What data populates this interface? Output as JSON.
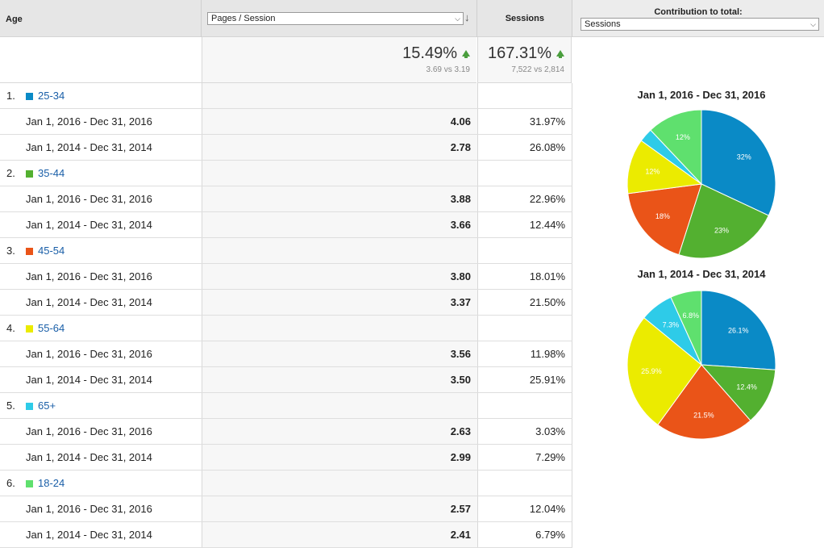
{
  "header": {
    "age_label": "Age",
    "metric_select": "Pages / Session",
    "sessions_label": "Sessions",
    "contribution_label": "Contribution to total:",
    "contribution_select": "Sessions"
  },
  "summary": {
    "pps_change": "15.49%",
    "pps_detail": "3.69 vs 3.19",
    "sessions_change": "167.31%",
    "sessions_detail": "7,522 vs 2,814"
  },
  "colors": [
    "#0a8ac6",
    "#53b030",
    "#ea5418",
    "#ebeb00",
    "#2ecbe8",
    "#5fe06e"
  ],
  "rows": [
    {
      "rank": "1.",
      "label": "25-34",
      "color": "#0a8ac6",
      "a_range": "Jan 1, 2016 - Dec 31, 2016",
      "a_pps": "4.06",
      "a_sess": "31.97%",
      "b_range": "Jan 1, 2014 - Dec 31, 2014",
      "b_pps": "2.78",
      "b_sess": "26.08%"
    },
    {
      "rank": "2.",
      "label": "35-44",
      "color": "#53b030",
      "a_range": "Jan 1, 2016 - Dec 31, 2016",
      "a_pps": "3.88",
      "a_sess": "22.96%",
      "b_range": "Jan 1, 2014 - Dec 31, 2014",
      "b_pps": "3.66",
      "b_sess": "12.44%"
    },
    {
      "rank": "3.",
      "label": "45-54",
      "color": "#ea5418",
      "a_range": "Jan 1, 2016 - Dec 31, 2016",
      "a_pps": "3.80",
      "a_sess": "18.01%",
      "b_range": "Jan 1, 2014 - Dec 31, 2014",
      "b_pps": "3.37",
      "b_sess": "21.50%"
    },
    {
      "rank": "4.",
      "label": "55-64",
      "color": "#ebeb00",
      "a_range": "Jan 1, 2016 - Dec 31, 2016",
      "a_pps": "3.56",
      "a_sess": "11.98%",
      "b_range": "Jan 1, 2014 - Dec 31, 2014",
      "b_pps": "3.50",
      "b_sess": "25.91%"
    },
    {
      "rank": "5.",
      "label": "65+",
      "color": "#2ecbe8",
      "a_range": "Jan 1, 2016 - Dec 31, 2016",
      "a_pps": "2.63",
      "a_sess": "3.03%",
      "b_range": "Jan 1, 2014 - Dec 31, 2014",
      "b_pps": "2.99",
      "b_sess": "7.29%"
    },
    {
      "rank": "6.",
      "label": "18-24",
      "color": "#5fe06e",
      "a_range": "Jan 1, 2016 - Dec 31, 2016",
      "a_pps": "2.57",
      "a_sess": "12.04%",
      "b_range": "Jan 1, 2014 - Dec 31, 2014",
      "b_pps": "2.41",
      "b_sess": "6.79%"
    }
  ],
  "chart_data": [
    {
      "type": "pie",
      "title": "Jan 1, 2016 - Dec 31, 2016",
      "categories": [
        "25-34",
        "35-44",
        "45-54",
        "55-64",
        "65+",
        "18-24"
      ],
      "values": [
        31.97,
        22.96,
        18.01,
        11.98,
        3.03,
        12.04
      ],
      "slice_labels": [
        "32%",
        "23%",
        "18%",
        "12%",
        "",
        "12%"
      ]
    },
    {
      "type": "pie",
      "title": "Jan 1, 2014 - Dec 31, 2014",
      "categories": [
        "25-34",
        "35-44",
        "45-54",
        "55-64",
        "65+",
        "18-24"
      ],
      "values": [
        26.08,
        12.44,
        21.5,
        25.91,
        7.29,
        6.79
      ],
      "slice_labels": [
        "26.1%",
        "12.4%",
        "21.5%",
        "25.9%",
        "7.3%",
        "6.8%"
      ]
    }
  ]
}
